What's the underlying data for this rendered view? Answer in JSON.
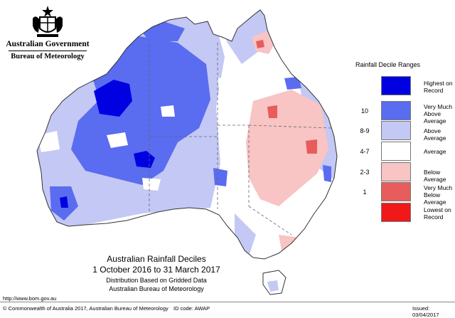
{
  "header": {
    "gov_title": "Australian Government",
    "bureau": "Bureau of Meteorology"
  },
  "legend": {
    "title": "Rainfall Decile Ranges",
    "items": [
      {
        "code": "",
        "label": "Highest on Record",
        "color": "#0000e0"
      },
      {
        "code": "10",
        "label": "Very Much Above Average",
        "color": "#5a6cf0"
      },
      {
        "code": "8-9",
        "label": "Above Average",
        "color": "#c4c8f4"
      },
      {
        "code": "4-7",
        "label": "Average",
        "color": "#ffffff"
      },
      {
        "code": "2-3",
        "label": "Below Average",
        "color": "#f8c4c4"
      },
      {
        "code": "1",
        "label": "Very Much Below Average",
        "color": "#e85c5c"
      },
      {
        "code": "",
        "label": "Lowest on Record",
        "color": "#f01818"
      }
    ]
  },
  "caption": {
    "line1": "Australian Rainfall Deciles",
    "line2": "1 October 2016 to 31 March 2017",
    "line3": "Distribution Based on Gridded Data",
    "line4": "Australian Bureau of Meteorology"
  },
  "footer": {
    "url": "http://www.bom.gov.au",
    "copyright": "© Commonwealth of Australia 2017, Australian Bureau of Meteorology",
    "id_code": "ID code: AWAP",
    "issued": "Issued: 03/04/2017"
  }
}
